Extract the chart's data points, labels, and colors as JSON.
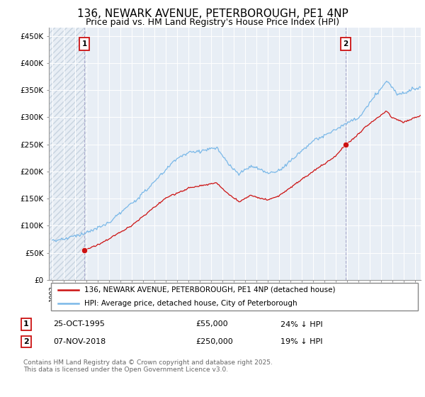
{
  "title": "136, NEWARK AVENUE, PETERBOROUGH, PE1 4NP",
  "subtitle": "Price paid vs. HM Land Registry's House Price Index (HPI)",
  "title_fontsize": 11,
  "subtitle_fontsize": 9,
  "hpi_color": "#7ab8e8",
  "price_color": "#cc1111",
  "marker_color": "#cc1111",
  "annotation_box_color": "#cc1111",
  "dashed_line_color": "#aaaacc",
  "ylabel_ticks": [
    "£0",
    "£50K",
    "£100K",
    "£150K",
    "£200K",
    "£250K",
    "£300K",
    "£350K",
    "£400K",
    "£450K"
  ],
  "ytick_values": [
    0,
    50000,
    100000,
    150000,
    200000,
    250000,
    300000,
    350000,
    400000,
    450000
  ],
  "ylim": [
    0,
    465000
  ],
  "xlim_start": 1992.7,
  "xlim_end": 2025.5,
  "point1_year": 1995.82,
  "point1_price": 55000,
  "point2_year": 2018.88,
  "point2_price": 250000,
  "legend_label1": "136, NEWARK AVENUE, PETERBOROUGH, PE1 4NP (detached house)",
  "legend_label2": "HPI: Average price, detached house, City of Peterborough",
  "footnote": "Contains HM Land Registry data © Crown copyright and database right 2025.\nThis data is licensed under the Open Government Licence v3.0.",
  "table_row1": [
    "1",
    "25-OCT-1995",
    "£55,000",
    "24% ↓ HPI"
  ],
  "table_row2": [
    "2",
    "07-NOV-2018",
    "£250,000",
    "19% ↓ HPI"
  ],
  "background_color": "#e8eef5",
  "grid_color": "#d0d8e8",
  "hatch_color": "#d0d8e8"
}
